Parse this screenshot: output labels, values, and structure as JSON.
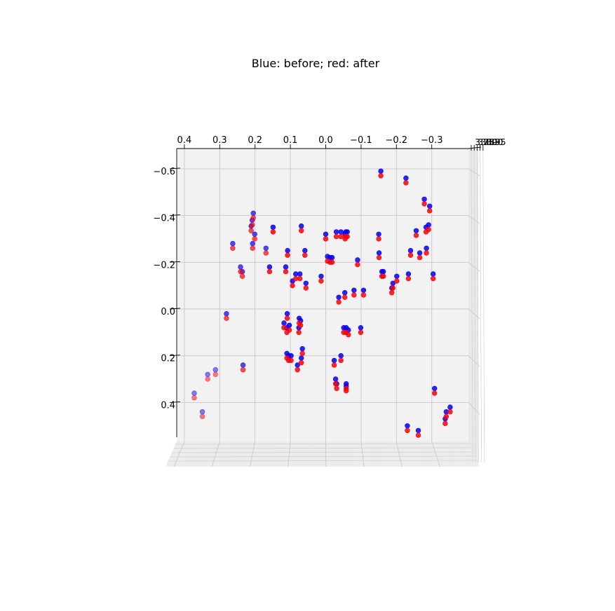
{
  "chart_data": {
    "type": "scatter",
    "title": "Blue: before; red: after",
    "projection": "3d",
    "grid": true,
    "x_ticks": [
      "0.4",
      "0.3",
      "0.2",
      "0.1",
      "0.0",
      "−0.1",
      "−0.2",
      "−0.3"
    ],
    "y_ticks": [
      "−0.6",
      "−0.4",
      "−0.2",
      "0.0",
      "0.2",
      "0.4"
    ],
    "z_ticks": [
      "3.75",
      "3.80",
      "3.85",
      "3.90",
      "3.95"
    ],
    "series": [
      {
        "name": "before",
        "color": "#0000ff",
        "points": [
          [
            -0.156,
            -0.59
          ],
          [
            -0.227,
            -0.56
          ],
          [
            -0.279,
            -0.47
          ],
          [
            -0.294,
            -0.44
          ],
          [
            0.205,
            -0.41
          ],
          [
            0.208,
            -0.38
          ],
          [
            0.211,
            -0.355
          ],
          [
            0.149,
            -0.35
          ],
          [
            0.069,
            -0.355
          ],
          [
            -0.256,
            -0.335
          ],
          [
            -0.284,
            -0.35
          ],
          [
            -0.291,
            -0.36
          ],
          [
            0.201,
            -0.32
          ],
          [
            -0.15,
            -0.32
          ],
          [
            0.263,
            -0.28
          ],
          [
            0.207,
            -0.28
          ],
          [
            0.169,
            -0.26
          ],
          [
            0.108,
            -0.25
          ],
          [
            0.059,
            -0.25
          ],
          [
            -0.043,
            -0.33
          ],
          [
            -0.057,
            -0.33
          ],
          [
            -0.061,
            -0.33
          ],
          [
            0.0,
            -0.32
          ],
          [
            -0.03,
            -0.33
          ],
          [
            -0.055,
            -0.32
          ],
          [
            -0.285,
            -0.26
          ],
          [
            -0.24,
            -0.25
          ],
          [
            -0.266,
            -0.24
          ],
          [
            -0.151,
            -0.24
          ],
          [
            -0.005,
            -0.225
          ],
          [
            -0.012,
            -0.22
          ],
          [
            -0.018,
            -0.22
          ],
          [
            -0.09,
            -0.21
          ],
          [
            0.241,
            -0.18
          ],
          [
            0.159,
            -0.18
          ],
          [
            0.113,
            -0.18
          ],
          [
            0.236,
            -0.16
          ],
          [
            -0.304,
            -0.15
          ],
          [
            -0.163,
            -0.16
          ],
          [
            -0.159,
            -0.16
          ],
          [
            -0.234,
            -0.15
          ],
          [
            0.073,
            -0.15
          ],
          [
            0.085,
            -0.15
          ],
          [
            -0.201,
            -0.14
          ],
          [
            -0.19,
            -0.11
          ],
          [
            -0.187,
            -0.09
          ],
          [
            0.013,
            -0.14
          ],
          [
            0.094,
            -0.12
          ],
          [
            0.056,
            -0.11
          ],
          [
            -0.08,
            -0.08
          ],
          [
            -0.107,
            -0.08
          ],
          [
            -0.054,
            -0.07
          ],
          [
            -0.037,
            -0.05
          ],
          [
            0.281,
            0.02
          ],
          [
            0.109,
            0.02
          ],
          [
            0.075,
            0.04
          ],
          [
            0.071,
            0.05
          ],
          [
            0.103,
            0.07
          ],
          [
            0.076,
            0.08
          ],
          [
            0.11,
            0.08
          ],
          [
            0.118,
            0.06
          ],
          [
            -0.051,
            0.08
          ],
          [
            -0.058,
            0.08
          ],
          [
            -0.064,
            0.09
          ],
          [
            -0.099,
            0.08
          ],
          [
            0.066,
            0.17
          ],
          [
            0.11,
            0.19
          ],
          [
            0.098,
            0.2
          ],
          [
            0.105,
            0.2
          ],
          [
            0.069,
            0.21
          ],
          [
            -0.043,
            0.2
          ],
          [
            -0.024,
            0.22
          ],
          [
            0.234,
            0.24
          ],
          [
            0.08,
            0.24
          ],
          [
            0.312,
            0.26
          ],
          [
            0.334,
            0.28
          ],
          [
            -0.028,
            0.3
          ],
          [
            -0.031,
            0.32
          ],
          [
            -0.058,
            0.32
          ],
          [
            -0.058,
            0.33
          ],
          [
            -0.308,
            0.34
          ],
          [
            0.372,
            0.36
          ],
          [
            -0.352,
            0.42
          ],
          [
            0.349,
            0.44
          ],
          [
            -0.231,
            0.5
          ],
          [
            -0.262,
            0.52
          ],
          [
            -0.341,
            0.44
          ],
          [
            -0.338,
            0.47
          ]
        ]
      },
      {
        "name": "after",
        "color": "#ff0000",
        "points": [
          [
            -0.156,
            -0.57
          ],
          [
            -0.227,
            -0.54
          ],
          [
            -0.279,
            -0.45
          ],
          [
            -0.294,
            -0.42
          ],
          [
            0.205,
            -0.39
          ],
          [
            0.208,
            -0.36
          ],
          [
            0.211,
            -0.335
          ],
          [
            0.149,
            -0.33
          ],
          [
            0.069,
            -0.335
          ],
          [
            -0.256,
            -0.315
          ],
          [
            -0.284,
            -0.33
          ],
          [
            -0.291,
            -0.34
          ],
          [
            0.201,
            -0.3
          ],
          [
            -0.15,
            -0.3
          ],
          [
            0.263,
            -0.26
          ],
          [
            0.207,
            -0.26
          ],
          [
            0.169,
            -0.24
          ],
          [
            0.108,
            -0.23
          ],
          [
            0.059,
            -0.23
          ],
          [
            -0.043,
            -0.31
          ],
          [
            -0.057,
            -0.31
          ],
          [
            -0.061,
            -0.31
          ],
          [
            0.0,
            -0.3
          ],
          [
            -0.03,
            -0.31
          ],
          [
            -0.055,
            -0.3
          ],
          [
            -0.285,
            -0.24
          ],
          [
            -0.24,
            -0.23
          ],
          [
            -0.266,
            -0.22
          ],
          [
            -0.151,
            -0.22
          ],
          [
            -0.005,
            -0.205
          ],
          [
            -0.012,
            -0.2
          ],
          [
            -0.018,
            -0.2
          ],
          [
            -0.09,
            -0.19
          ],
          [
            0.241,
            -0.16
          ],
          [
            0.159,
            -0.16
          ],
          [
            0.113,
            -0.16
          ],
          [
            0.236,
            -0.14
          ],
          [
            -0.304,
            -0.13
          ],
          [
            -0.163,
            -0.14
          ],
          [
            -0.159,
            -0.14
          ],
          [
            -0.234,
            -0.13
          ],
          [
            0.073,
            -0.13
          ],
          [
            0.085,
            -0.13
          ],
          [
            -0.201,
            -0.12
          ],
          [
            -0.19,
            -0.09
          ],
          [
            -0.187,
            -0.07
          ],
          [
            0.013,
            -0.12
          ],
          [
            0.094,
            -0.1
          ],
          [
            0.056,
            -0.09
          ],
          [
            -0.08,
            -0.06
          ],
          [
            -0.107,
            -0.06
          ],
          [
            -0.054,
            -0.05
          ],
          [
            -0.037,
            -0.03
          ],
          [
            0.281,
            0.04
          ],
          [
            0.109,
            0.04
          ],
          [
            0.075,
            0.06
          ],
          [
            0.071,
            0.07
          ],
          [
            0.103,
            0.09
          ],
          [
            0.076,
            0.1
          ],
          [
            0.11,
            0.1
          ],
          [
            0.118,
            0.08
          ],
          [
            -0.051,
            0.1
          ],
          [
            -0.058,
            0.1
          ],
          [
            -0.064,
            0.11
          ],
          [
            -0.099,
            0.1
          ],
          [
            0.066,
            0.19
          ],
          [
            0.11,
            0.21
          ],
          [
            0.098,
            0.22
          ],
          [
            0.105,
            0.22
          ],
          [
            0.069,
            0.23
          ],
          [
            -0.043,
            0.22
          ],
          [
            -0.024,
            0.24
          ],
          [
            0.234,
            0.26
          ],
          [
            0.08,
            0.26
          ],
          [
            0.312,
            0.28
          ],
          [
            0.334,
            0.3
          ],
          [
            -0.028,
            0.32
          ],
          [
            -0.031,
            0.34
          ],
          [
            -0.058,
            0.34
          ],
          [
            -0.058,
            0.35
          ],
          [
            -0.308,
            0.36
          ],
          [
            0.372,
            0.38
          ],
          [
            -0.352,
            0.44
          ],
          [
            0.349,
            0.46
          ],
          [
            -0.231,
            0.52
          ],
          [
            -0.262,
            0.54
          ],
          [
            -0.341,
            0.46
          ],
          [
            -0.338,
            0.49
          ]
        ]
      }
    ]
  }
}
